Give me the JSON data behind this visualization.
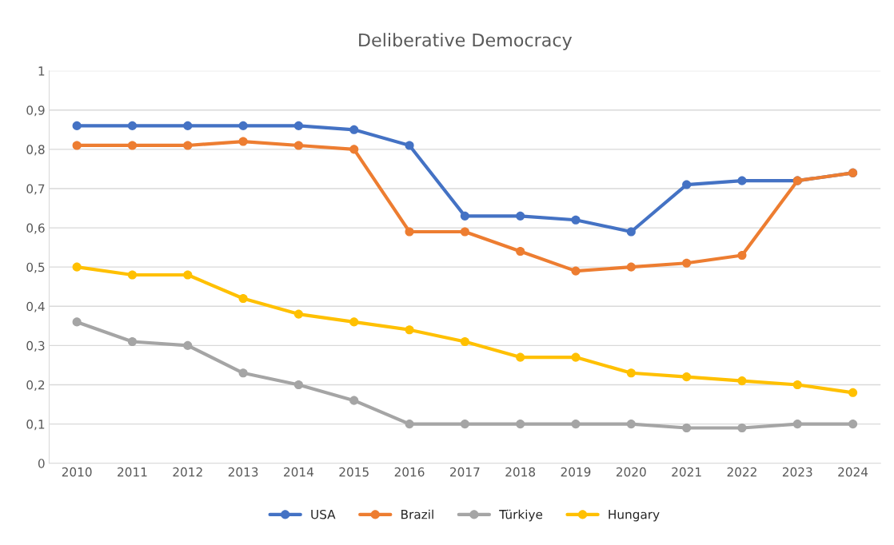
{
  "chart_data": {
    "type": "line",
    "title": "Deliberative Democracy",
    "categories": [
      "2010",
      "2011",
      "2012",
      "2013",
      "2014",
      "2015",
      "2016",
      "2017",
      "2018",
      "2019",
      "2020",
      "2021",
      "2022",
      "2023",
      "2024"
    ],
    "series": [
      {
        "name": "USA",
        "color": "#4472c4",
        "values": [
          0.86,
          0.86,
          0.86,
          0.86,
          0.86,
          0.85,
          0.81,
          0.63,
          0.63,
          0.62,
          0.59,
          0.71,
          0.72,
          0.72,
          0.74
        ]
      },
      {
        "name": "Brazil",
        "color": "#ed7d31",
        "values": [
          0.81,
          0.81,
          0.81,
          0.82,
          0.81,
          0.8,
          0.59,
          0.59,
          0.54,
          0.49,
          0.5,
          0.51,
          0.53,
          0.72,
          0.74
        ]
      },
      {
        "name": "Türkiye",
        "color": "#a5a5a5",
        "values": [
          0.36,
          0.31,
          0.3,
          0.23,
          0.2,
          0.16,
          0.1,
          0.1,
          0.1,
          0.1,
          0.1,
          0.09,
          0.09,
          0.1,
          0.1
        ]
      },
      {
        "name": "Hungary",
        "color": "#ffc000",
        "values": [
          0.5,
          0.48,
          0.48,
          0.42,
          0.38,
          0.36,
          0.34,
          0.31,
          0.27,
          0.27,
          0.23,
          0.22,
          0.21,
          0.2,
          0.18
        ]
      }
    ],
    "ylim": [
      0,
      1
    ],
    "yticks": [
      0,
      {
        "value": 0.1,
        "label": "0,1"
      },
      {
        "value": 0.2,
        "label": "0,2"
      },
      {
        "value": 0.3,
        "label": "0,3"
      },
      {
        "value": 0.4,
        "label": "0,4"
      },
      {
        "value": 0.5,
        "label": "0,5"
      },
      {
        "value": 0.6,
        "label": "0,6"
      },
      {
        "value": 0.7,
        "label": "0,7"
      },
      {
        "value": 0.8,
        "label": "0,8"
      },
      {
        "value": 0.9,
        "label": "0,9"
      },
      1
    ],
    "grid": "y",
    "legend": "bottom",
    "marker": "circle",
    "line_style": "solid"
  }
}
